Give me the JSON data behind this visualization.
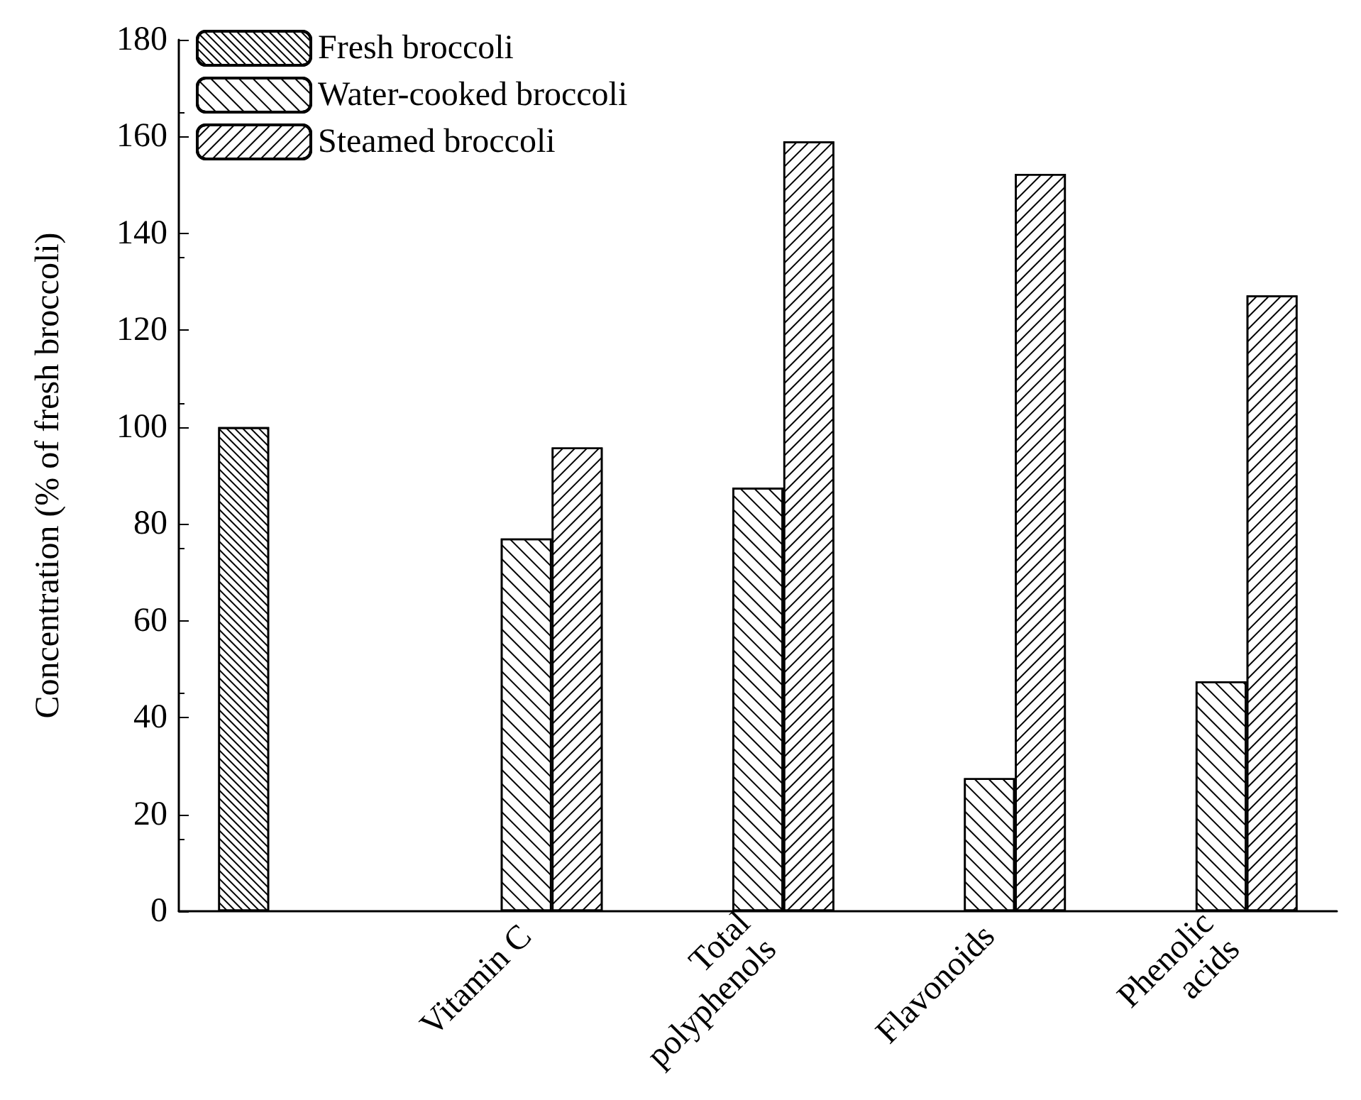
{
  "chart_data": {
    "type": "bar",
    "ylabel": "Concentration (% of fresh broccoli)",
    "categories": [
      null,
      "Vitamin C",
      "Total\npolyphenols",
      "Flavonoids",
      "Phenolic\nacids"
    ],
    "series": [
      {
        "name": "Fresh broccoli",
        "color": "#ffffff",
        "values": [
          100,
          null,
          null,
          null,
          null
        ]
      },
      {
        "name": "Water-cooked broccoli",
        "color": "#ffffff",
        "values": [
          null,
          77,
          87.5,
          27.5,
          47.5
        ]
      },
      {
        "name": "Steamed broccoli",
        "color": "#ffffff",
        "values": [
          null,
          95.8,
          159,
          152.3,
          127.2
        ]
      }
    ],
    "ylim": [
      0,
      180
    ],
    "yticks": [
      0,
      20,
      40,
      60,
      80,
      100,
      120,
      140,
      160,
      180
    ],
    "grid": false,
    "legend": "top left"
  }
}
